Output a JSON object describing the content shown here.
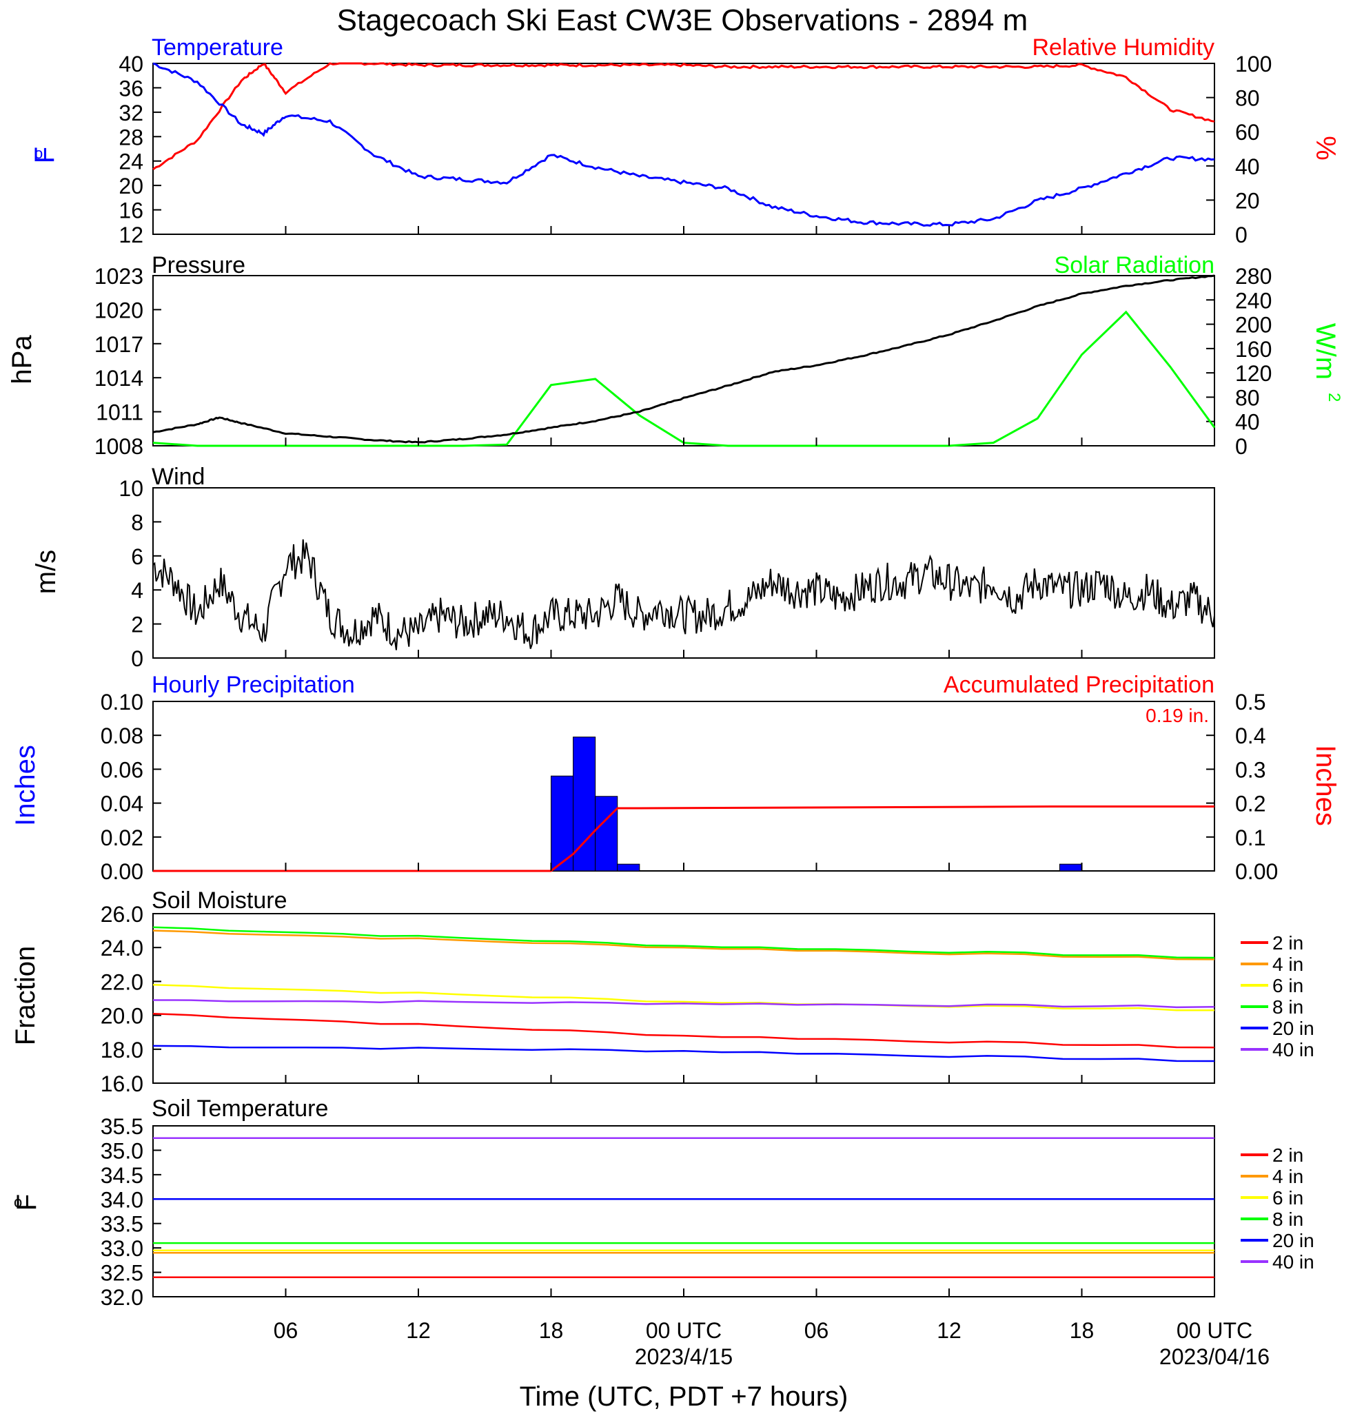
{
  "title": "Stagecoach Ski East CW3E Observations - 2894 m",
  "xaxis": {
    "label": "Time (UTC, PDT +7 hours)",
    "hours_span": [
      0,
      48
    ],
    "ticks": [
      {
        "hour": 6,
        "label": "06",
        "sub": ""
      },
      {
        "hour": 12,
        "label": "12",
        "sub": ""
      },
      {
        "hour": 18,
        "label": "18",
        "sub": ""
      },
      {
        "hour": 24,
        "label": "00 UTC",
        "sub": "2023/4/15"
      },
      {
        "hour": 30,
        "label": "06",
        "sub": ""
      },
      {
        "hour": 36,
        "label": "12",
        "sub": ""
      },
      {
        "hour": 42,
        "label": "18",
        "sub": ""
      },
      {
        "hour": 48,
        "label": "00 UTC",
        "sub": "2023/04/16"
      }
    ]
  },
  "colors": {
    "blue": "#0000ff",
    "red": "#ff0000",
    "green": "#00ff00",
    "black": "#000000",
    "orange": "#ff9900",
    "yellow": "#ffff00",
    "purple": "#9933ff"
  },
  "panels": {
    "temperature": {
      "left_title": "Temperature",
      "right_title": "Relative Humidity",
      "left_unit_base": "o",
      "left_unit": "F",
      "right_unit": "%",
      "left_ticks": [
        "12",
        "16",
        "20",
        "24",
        "28",
        "32",
        "36",
        "40"
      ],
      "right_ticks": [
        "0",
        "20",
        "40",
        "60",
        "80",
        "100"
      ]
    },
    "pressure": {
      "left_title": "Pressure",
      "right_title": "Solar Radiation",
      "left_unit": "hPa",
      "right_unit": "W/m",
      "right_unit_sup": "2",
      "left_ticks": [
        "1008",
        "1011",
        "1014",
        "1017",
        "1020",
        "1023"
      ],
      "right_ticks": [
        "0",
        "40",
        "80",
        "120",
        "160",
        "200",
        "240",
        "280"
      ]
    },
    "wind": {
      "left_title": "Wind",
      "left_unit": "m/s",
      "left_ticks": [
        "0",
        "2",
        "4",
        "6",
        "8",
        "10"
      ]
    },
    "precip": {
      "left_title": "Hourly Precipitation",
      "right_title": "Accumulated Precipitation",
      "total_label": "0.19 in.",
      "left_unit": "Inches",
      "right_unit": "Inches",
      "left_ticks": [
        "0.00",
        "0.02",
        "0.04",
        "0.06",
        "0.08",
        "0.10"
      ],
      "right_ticks": [
        "0.00",
        "0.1",
        "0.2",
        "0.3",
        "0.4",
        "0.5"
      ]
    },
    "soil_moisture": {
      "left_title": "Soil Moisture",
      "left_unit": "Fraction",
      "left_ticks": [
        "16.0",
        "18.0",
        "20.0",
        "22.0",
        "24.0",
        "26.0"
      ],
      "legend": [
        "2 in",
        "4 in",
        "6 in",
        "8 in",
        "20 in",
        "40 in"
      ]
    },
    "soil_temperature": {
      "left_title": "Soil Temperature",
      "left_unit_base": "o",
      "left_unit": "F",
      "left_ticks": [
        "32.0",
        "32.5",
        "33.0",
        "33.5",
        "34.0",
        "34.5",
        "35.0",
        "35.5"
      ],
      "legend": [
        "2 in",
        "4 in",
        "6 in",
        "8 in",
        "20 in",
        "40 in"
      ]
    }
  },
  "chart_data": [
    {
      "type": "line",
      "title": "Temperature / Relative Humidity",
      "x": [
        0,
        2,
        4,
        5,
        6,
        8,
        10,
        12,
        14,
        16,
        18,
        20,
        22,
        24,
        26,
        28,
        30,
        32,
        34,
        36,
        38,
        40,
        42,
        44,
        46,
        48
      ],
      "series": [
        {
          "name": "Temperature",
          "axis": "left",
          "color": "#0000ff",
          "values": [
            40,
            37,
            30,
            28.5,
            31.5,
            30.5,
            25,
            21.5,
            21,
            20.5,
            25,
            23,
            21.5,
            20.5,
            19.5,
            16.5,
            15,
            14,
            13.7,
            13.6,
            14.5,
            17.5,
            19.5,
            22,
            24.5,
            24.3
          ]
        },
        {
          "name": "Relative Humidity",
          "axis": "right",
          "color": "#ff0000",
          "values": [
            38,
            55,
            90,
            100,
            83,
            100,
            100,
            99,
            99,
            99,
            99,
            99,
            99,
            99,
            98,
            98,
            98,
            98,
            98,
            98,
            98,
            98,
            99,
            92,
            73,
            66
          ]
        }
      ],
      "ylim_left": [
        12,
        40
      ],
      "ylim_right": [
        0,
        100
      ]
    },
    {
      "type": "line",
      "title": "Pressure / Solar Radiation",
      "x": [
        0,
        2,
        3,
        4,
        6,
        8,
        10,
        12,
        14,
        16,
        18,
        20,
        22,
        24,
        26,
        28,
        30,
        32,
        34,
        36,
        38,
        40,
        42,
        44,
        46,
        48
      ],
      "series": [
        {
          "name": "Pressure",
          "axis": "left",
          "color": "#000000",
          "values": [
            1009.2,
            1009.9,
            1010.5,
            1010.0,
            1009.1,
            1008.8,
            1008.5,
            1008.3,
            1008.6,
            1009.0,
            1009.6,
            1010.2,
            1011.0,
            1012.2,
            1013.3,
            1014.5,
            1015.1,
            1015.9,
            1016.8,
            1017.8,
            1019.0,
            1020.3,
            1021.4,
            1022.1,
            1022.6,
            1023.0
          ]
        },
        {
          "name": "Solar Radiation",
          "axis": "right",
          "color": "#00ff00",
          "values": [
            5,
            0,
            0,
            0,
            0,
            0,
            0,
            0,
            0,
            2,
            100,
            110,
            50,
            5,
            0,
            0,
            0,
            0,
            0,
            0,
            5,
            45,
            150,
            220,
            130,
            30
          ]
        }
      ],
      "ylim_left": [
        1008,
        1023
      ],
      "ylim_right": [
        0,
        280
      ]
    },
    {
      "type": "line",
      "title": "Wind",
      "x": [
        0,
        1,
        2,
        3,
        4,
        5,
        6,
        7,
        8,
        9,
        10,
        11,
        12,
        13,
        14,
        15,
        16,
        17,
        18,
        19,
        20,
        21,
        22,
        23,
        24,
        25,
        26,
        27,
        28,
        29,
        30,
        31,
        32,
        33,
        34,
        35,
        36,
        37,
        38,
        39,
        40,
        41,
        42,
        43,
        44,
        45,
        46,
        47,
        48
      ],
      "series": [
        {
          "name": "Wind speed",
          "color": "#000000",
          "values": [
            5.5,
            4.5,
            2.5,
            4.5,
            2.5,
            1.5,
            5.5,
            6,
            2.5,
            1.5,
            2.5,
            1.5,
            1.5,
            2.5,
            2,
            2.5,
            2.5,
            1.5,
            2.5,
            2.5,
            2.5,
            3.5,
            2.5,
            3,
            2.5,
            2.5,
            3,
            3.5,
            4.5,
            4,
            4,
            3.5,
            4,
            4.5,
            4.5,
            5,
            4.5,
            4,
            4.5,
            3.5,
            4.5,
            4,
            4,
            4.5,
            3.5,
            4,
            3,
            3.5,
            2.5
          ]
        }
      ],
      "ylim": [
        0,
        10
      ]
    },
    {
      "type": "bar",
      "title": "Hourly Precipitation / Accumulated Precipitation",
      "categories": [
        "18",
        "19",
        "20",
        "21",
        "41"
      ],
      "series": [
        {
          "name": "Hourly Precipitation",
          "color": "#0000ff",
          "values": [
            0.056,
            0.079,
            0.044,
            0.004,
            0.004
          ]
        },
        {
          "name": "Accumulated Precipitation",
          "color": "#ff0000",
          "type": "line",
          "x": [
            0,
            18,
            19,
            20,
            21,
            22,
            41,
            48
          ],
          "values": [
            0,
            0,
            0.05,
            0.12,
            0.185,
            0.185,
            0.19,
            0.19
          ]
        }
      ],
      "ylim_left": [
        0,
        0.1
      ],
      "ylim_right": [
        0,
        0.5
      ]
    },
    {
      "type": "line",
      "title": "Soil Moisture",
      "x": [
        0,
        24,
        48
      ],
      "series": [
        {
          "name": "2 in",
          "color": "#ff0000",
          "values": [
            20.1,
            18.8,
            18.1
          ]
        },
        {
          "name": "4 in",
          "color": "#ff9900",
          "values": [
            25.0,
            24.0,
            23.3
          ]
        },
        {
          "name": "6 in",
          "color": "#ffff00",
          "values": [
            21.8,
            20.8,
            20.3
          ]
        },
        {
          "name": "8 in",
          "color": "#00ff00",
          "values": [
            25.2,
            24.1,
            23.4
          ]
        },
        {
          "name": "20 in",
          "color": "#0000ff",
          "values": [
            18.2,
            17.9,
            17.3
          ]
        },
        {
          "name": "40 in",
          "color": "#9933ff",
          "values": [
            20.9,
            20.7,
            20.5
          ]
        }
      ],
      "ylim": [
        16,
        26
      ]
    },
    {
      "type": "line",
      "title": "Soil Temperature",
      "x": [
        0,
        48
      ],
      "series": [
        {
          "name": "2 in",
          "color": "#ff0000",
          "values": [
            32.4,
            32.4
          ]
        },
        {
          "name": "4 in",
          "color": "#ff9900",
          "values": [
            32.9,
            32.9
          ]
        },
        {
          "name": "6 in",
          "color": "#ffff00",
          "values": [
            32.95,
            32.95
          ]
        },
        {
          "name": "8 in",
          "color": "#00ff00",
          "values": [
            33.1,
            33.1
          ]
        },
        {
          "name": "20 in",
          "color": "#0000ff",
          "values": [
            34.0,
            34.0
          ]
        },
        {
          "name": "40 in",
          "color": "#9933ff",
          "values": [
            35.25,
            35.25
          ]
        }
      ],
      "ylim": [
        32,
        35.5
      ]
    }
  ]
}
